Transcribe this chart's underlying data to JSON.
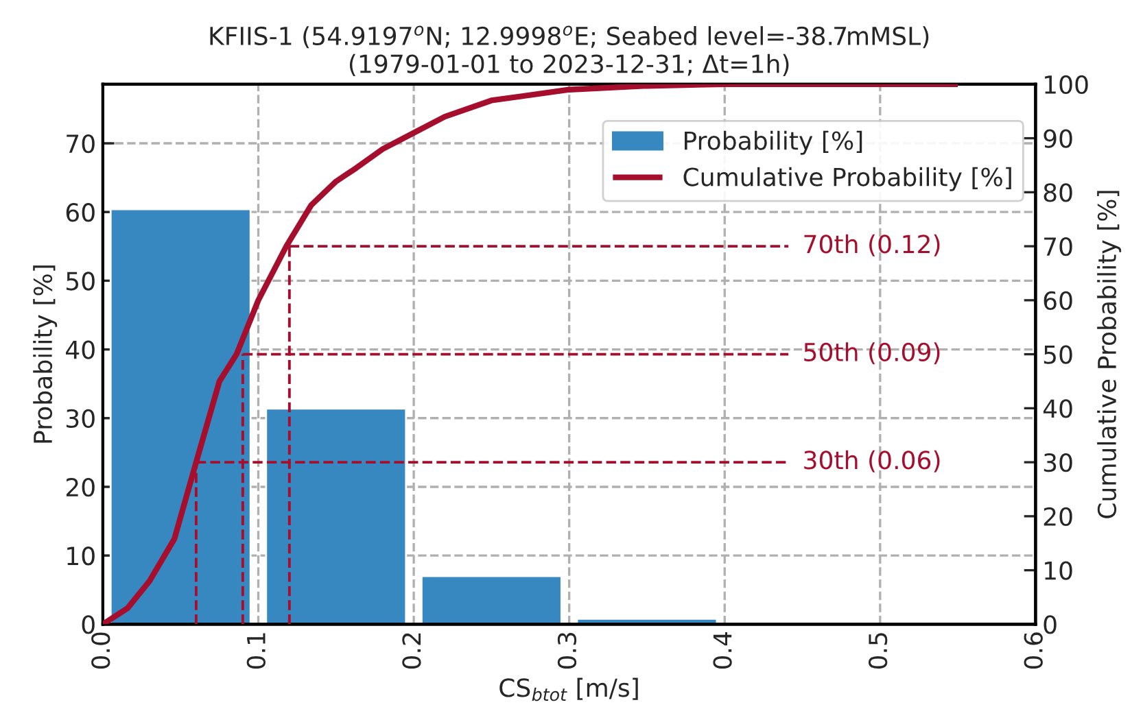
{
  "chart_data": {
    "type": "histogram",
    "title": "KFIIS-1 (54.9197$^{o}$N; 12.9998$^{o}$E; Seabed level=-38.7mMSL)\n(1979-01-01 to 2023-12-31; Δt=1h)",
    "xlabel": "CS$_{btot}$ [m/s]",
    "ylabel": "Probability [%]",
    "y2label": "Cumulative Probability [%]",
    "bins": [
      0,
      0.1,
      0.2,
      0.3,
      0.4
    ],
    "series": [
      {
        "name": "Probability [%]",
        "color": "#3787c0",
        "values": [
          60.4,
          31.4,
          7.0,
          0.8
        ]
      },
      {
        "type": "line",
        "axis": "y2",
        "name": "Cumulative Probability [%]",
        "color": "#a50f2d",
        "x": [
          0,
          0.016,
          0.03,
          0.046,
          0.06,
          0.075,
          0.086,
          0.1,
          0.118,
          0.134,
          0.15,
          0.163,
          0.18,
          0.2,
          0.22,
          0.25,
          0.3,
          0.35,
          0.4,
          0.45,
          0.55
        ],
        "values": [
          0,
          3,
          8,
          15.8,
          30,
          45,
          50,
          60,
          70,
          77.6,
          82,
          84.5,
          88,
          91,
          94,
          97,
          99,
          99.7,
          100,
          100,
          100
        ]
      }
    ],
    "xlim": [
      0,
      0.6
    ],
    "xticks": [
      {
        "value": 0,
        "label": "0.0"
      },
      0.1,
      0.2,
      0.3,
      0.4,
      0.5,
      0.6
    ],
    "ylim": [
      0,
      78.6
    ],
    "yticks": [
      0,
      10,
      20,
      30,
      40,
      50,
      60,
      70
    ],
    "y2lim": [
      0,
      100
    ],
    "y2ticks": [
      0,
      10,
      20,
      30,
      40,
      50,
      60,
      70,
      80,
      90,
      100
    ],
    "ref_lines": [
      {
        "axis": "x",
        "value": 0.06,
        "color": "#a50f2d",
        "line_style": "dashed"
      },
      {
        "axis": "x",
        "value": 0.09,
        "color": "#a50f2d",
        "line_style": "dashed"
      },
      {
        "axis": "x",
        "value": 0.12,
        "color": "#a50f2d",
        "line_style": "dashed"
      },
      {
        "axis": "y2",
        "value": 30,
        "label": "30th (0.06)",
        "color": "#a50f2d",
        "line_style": "dashed"
      },
      {
        "axis": "y2",
        "value": 50,
        "label": "50th (0.09)",
        "color": "#a50f2d",
        "line_style": "dashed"
      },
      {
        "axis": "y2",
        "value": 70,
        "label": "70th (0.12)",
        "color": "#a50f2d",
        "line_style": "dashed"
      }
    ],
    "grid": true,
    "legend": "top right"
  }
}
